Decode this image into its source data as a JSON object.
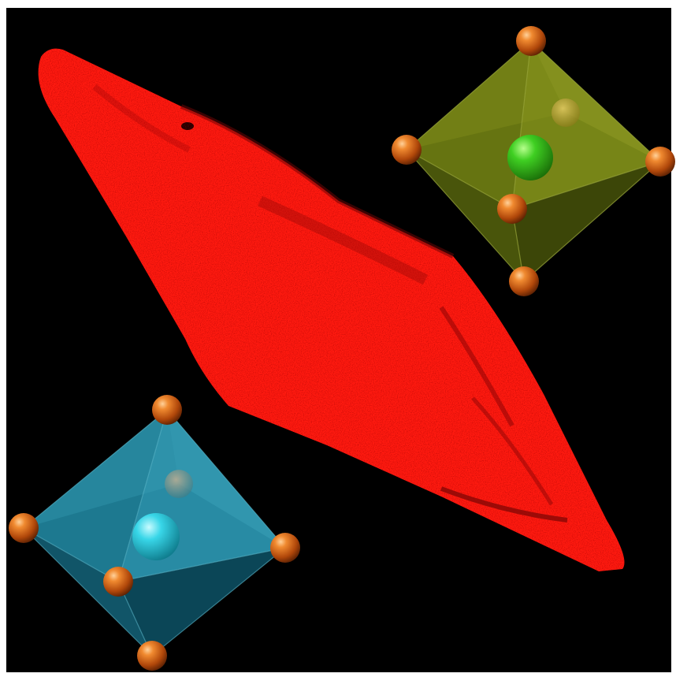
{
  "scene": {
    "background_color": "#000000",
    "frame_color": "#ffffff",
    "crystal": {
      "shape": "elongated-rhombus-crystal",
      "color": "#ff1a10",
      "shadow_color": "#a00a08"
    },
    "octahedra": [
      {
        "name": "green-octahedron",
        "face_color": "#6b7a12",
        "center_atom_color": "#33cc22",
        "vertex_atom_color": "#d65a10"
      },
      {
        "name": "cyan-octahedron",
        "face_color": "#1f7f98",
        "center_atom_color": "#33d8e8",
        "vertex_atom_color": "#d65a10"
      }
    ]
  }
}
